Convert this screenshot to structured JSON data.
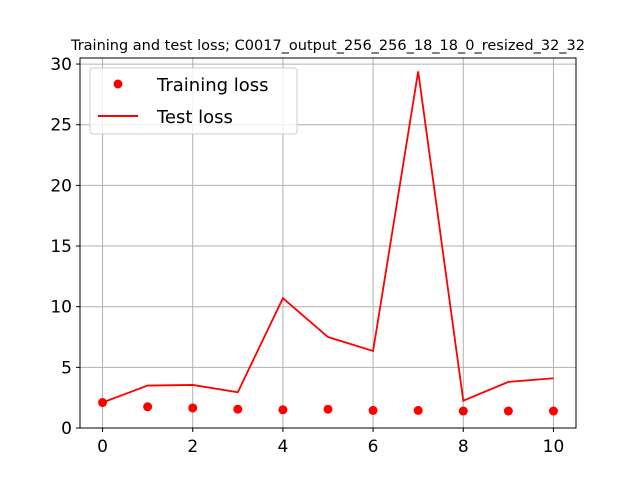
{
  "chart_data": {
    "type": "line",
    "title": "Training and test loss; C0017_output_256_256_18_18_0_resized_32_32",
    "xlabel": "",
    "ylabel": "",
    "xlim": [
      -0.5,
      10.5
    ],
    "ylim": [
      0,
      30.5
    ],
    "x_ticks": [
      0,
      2,
      4,
      6,
      8,
      10
    ],
    "y_ticks": [
      0,
      5,
      10,
      15,
      20,
      25,
      30
    ],
    "grid": true,
    "legend": {
      "placement": "upper-left"
    },
    "series": [
      {
        "name": "Training loss",
        "kind": "scatter",
        "color": "#ff0000",
        "x": [
          0,
          1,
          2,
          3,
          4,
          5,
          6,
          7,
          8,
          9,
          10
        ],
        "y": [
          2.1,
          1.75,
          1.65,
          1.55,
          1.5,
          1.55,
          1.45,
          1.45,
          1.4,
          1.4,
          1.4
        ]
      },
      {
        "name": "Test loss",
        "kind": "line",
        "color": "#ff0000",
        "x": [
          0,
          1,
          2,
          3,
          4,
          5,
          6,
          7,
          8,
          9,
          10
        ],
        "y": [
          2.1,
          3.5,
          3.55,
          2.95,
          10.7,
          7.5,
          6.35,
          29.4,
          2.25,
          3.8,
          4.1
        ]
      }
    ]
  }
}
